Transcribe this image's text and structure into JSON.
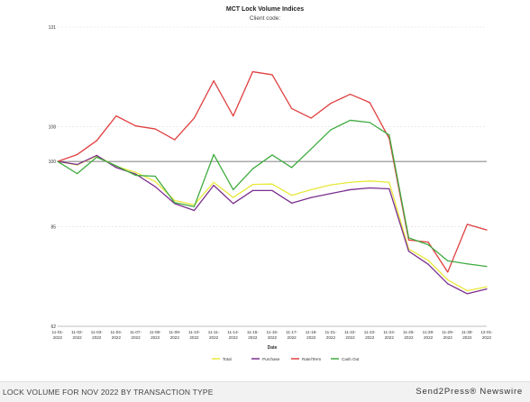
{
  "chart_data": {
    "type": "line",
    "title": "MCT Lock Volume Indices",
    "subtitle": "Client code:",
    "xlabel": "Date",
    "ylabel": "",
    "y_ticks": [
      "131",
      "108",
      "100",
      "85",
      "62"
    ],
    "ylim": [
      62,
      131
    ],
    "reference_line": 100,
    "grid": "horizontal",
    "legend_position": "bottom",
    "x": [
      "11-01-2022",
      "11-02-2022",
      "11-03-2022",
      "11-04-2022",
      "11-07-2022",
      "11-08-2022",
      "11-09-2022",
      "11-10-2022",
      "11-11-2022",
      "11-14-2022",
      "11-15-2022",
      "11-16-2022",
      "11-17-2022",
      "11-18-2022",
      "11-21-2022",
      "11-22-2022",
      "11-23-2022",
      "11-24-2022",
      "11-25-2022",
      "11-28-2022",
      "11-29-2022",
      "11-30-2022",
      "12-01-2022"
    ],
    "series": [
      {
        "name": "Total",
        "color": "#e8e83a",
        "values": [
          100,
          99.2,
          101.3,
          98.9,
          97.5,
          95.4,
          91.0,
          90.0,
          95.2,
          91.7,
          94.7,
          94.8,
          92.2,
          93.5,
          94.6,
          95.2,
          95.5,
          95.2,
          79.8,
          77.2,
          72.7,
          70.2,
          71.1
        ]
      },
      {
        "name": "Purchase",
        "color": "#7b2d8e",
        "values": [
          100,
          99.3,
          101.4,
          98.6,
          97.1,
          94.2,
          90.3,
          88.7,
          94.5,
          90.3,
          93.3,
          93.3,
          90.4,
          91.7,
          92.6,
          93.5,
          93.9,
          93.7,
          79.3,
          76.3,
          71.8,
          69.5,
          70.6
        ]
      },
      {
        "name": "Rate/Term",
        "color": "#e04040",
        "values": [
          100,
          101.6,
          104.8,
          110.5,
          108.2,
          107.5,
          105.0,
          110.0,
          118.6,
          110.5,
          120.7,
          120.0,
          112.2,
          110.0,
          113.4,
          115.5,
          113.6,
          105.3,
          81.9,
          81.4,
          74.5,
          85.5,
          84.2
        ]
      },
      {
        "name": "Cash Out",
        "color": "#3faa3f",
        "values": [
          100,
          97.2,
          101.0,
          99.0,
          96.8,
          96.6,
          90.5,
          89.6,
          101.6,
          93.5,
          98.3,
          101.5,
          98.6,
          102.9,
          107.3,
          109.5,
          109.0,
          106.1,
          82.4,
          80.8,
          77.1,
          76.4,
          75.8
        ]
      }
    ]
  },
  "footer": {
    "caption": "LOCK VOLUME FOR NOV 2022 BY TRANSACTION TYPE",
    "brand": "Send2Press® Newswire"
  }
}
